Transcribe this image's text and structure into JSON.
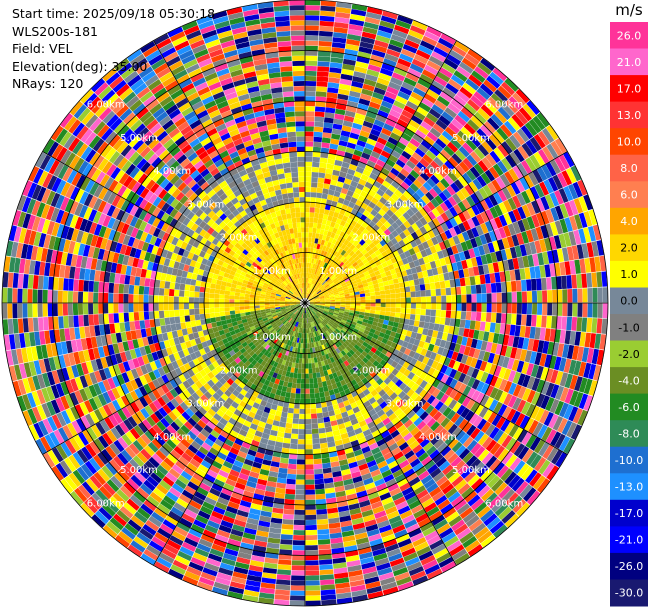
{
  "header": {
    "start_time": "Start time: 2025/09/18 05:30:18",
    "instrument": "WLS200s-181",
    "field": "Field: VEL",
    "elevation": "Elevation(deg): 35.00",
    "nrays": "NRays: 120"
  },
  "chart_data": {
    "type": "heatmap",
    "projection": "polar-ppi",
    "field": "VEL",
    "units": "m/s",
    "n_rays": 120,
    "max_range_km": 6.0,
    "range_rings_km": [
      1,
      2,
      3,
      4,
      5,
      6
    ],
    "ring_labels": [
      "1.00km",
      "2.00km",
      "3.00km",
      "4.00km",
      "5.00km",
      "6.00km"
    ],
    "spokes_deg": [
      0,
      30,
      60,
      90,
      120,
      150,
      180,
      210,
      240,
      270,
      300,
      330
    ],
    "colorbar": {
      "label": "m/s",
      "ticks": [
        "26.0",
        "21.0",
        "17.0",
        "13.0",
        "10.0",
        "8.0",
        "6.0",
        "4.0",
        "2.0",
        "1.0",
        "0.0",
        "-1.0",
        "-2.0",
        "-4.0",
        "-6.0",
        "-8.0",
        "-10.0",
        "-13.0",
        "-17.0",
        "-21.0",
        "-26.0",
        "-30.0"
      ],
      "colors": [
        "#ff3399",
        "#ff66cc",
        "#ff0000",
        "#ff3333",
        "#ff4500",
        "#ff6347",
        "#ff7f50",
        "#ffa500",
        "#ffd700",
        "#ffff00",
        "#778899",
        "#808080",
        "#9acd32",
        "#6b8e23",
        "#228b22",
        "#2e8b57",
        "#1e6fd0",
        "#1e90ff",
        "#0000cd",
        "#0000ff",
        "#000080",
        "#191970"
      ]
    },
    "regions": [
      {
        "range_km": [
          0.0,
          1.3
        ],
        "sector": "north",
        "value_ms": 3.0
      },
      {
        "range_km": [
          0.0,
          1.3
        ],
        "sector": "south",
        "value_ms": -3.0
      },
      {
        "range_km": [
          1.3,
          2.0
        ],
        "sector": "north",
        "value_ms": 2.5
      },
      {
        "range_km": [
          1.3,
          2.0
        ],
        "sector": "south",
        "value_ms": -4.0
      },
      {
        "range_km": [
          2.0,
          3.0
        ],
        "sector": "all",
        "value_ms": 1.0
      },
      {
        "range_km": [
          3.0,
          6.0
        ],
        "sector": "all",
        "value_ms": "noise"
      }
    ]
  }
}
